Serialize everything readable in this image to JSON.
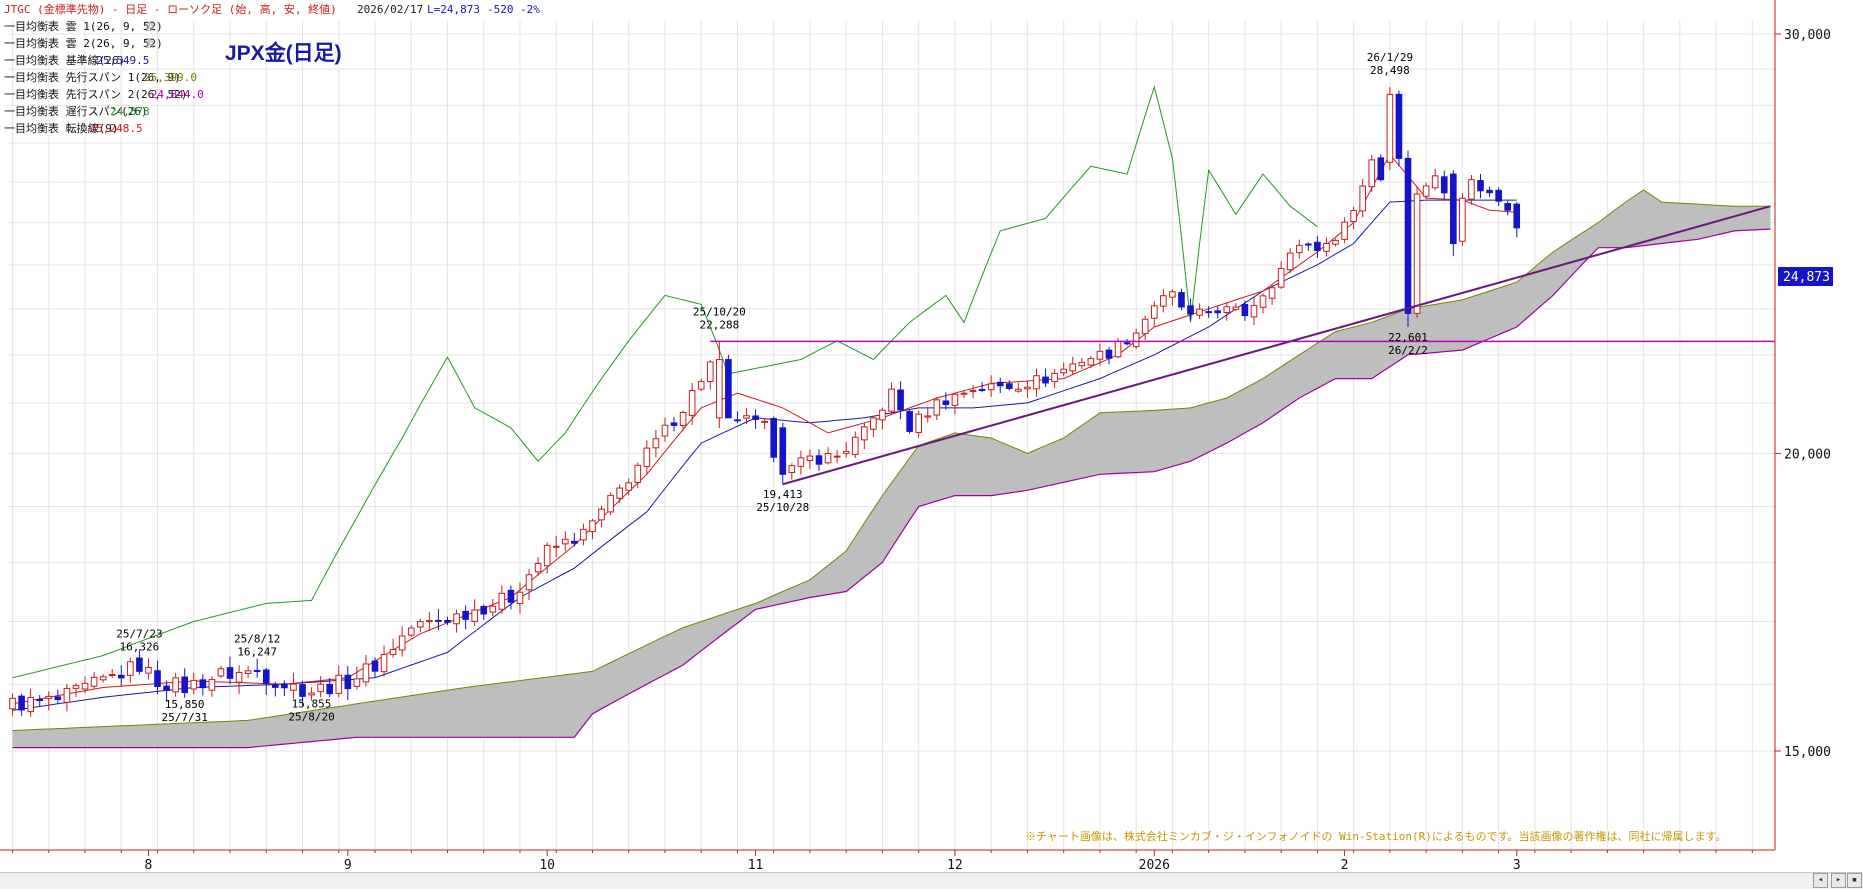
{
  "header": {
    "line": "JTGC (金標準先物) - 日足 - ローソク足 (始, 高, 安, 終値)",
    "date": "2026/02/17",
    "last": "L=24,873",
    "change": "-520",
    "pct": "-2%"
  },
  "big_title": "JPX金(日足)",
  "legend": [
    {
      "label": "一目均衡表 雲 1(26, 9, 52)",
      "value": "雲",
      "color": "#aaaaaa"
    },
    {
      "label": "一目均衡表 雲 2(26, 9, 52)",
      "value": "雲",
      "color": "#aaaaaa"
    },
    {
      "label": "一目均衡表 基準線(26)",
      "value": "25,549.5",
      "color": "#1a1aa0"
    },
    {
      "label": "一目均衡表 先行スパン 1(26, 9)",
      "value": "25,399.0",
      "color": "#808000"
    },
    {
      "label": "一目均衡表 先行スパン 2(26, 52)",
      "value": "24,844.0",
      "color": "#a000a0"
    },
    {
      "label": "一目均衡表 遅行スパン(26)",
      "value": "24,873",
      "color": "#1f9a1f"
    },
    {
      "label": "一目均衡表 転換線(9)",
      "value": "25,248.5",
      "color": "#c81e1e"
    }
  ],
  "price_label": "24,873",
  "copyright": "※チャート画像は、株式会社ミンカブ・ジ・インフォノイドの Win-Station(R)によるものです。当該画像の著作権は、同社に帰属します。",
  "colors": {
    "up": "#c81e1e",
    "down": "#1414c8",
    "kijun": "#1a1aa0",
    "tenkan": "#c81e1e",
    "chikou": "#1f9a1f",
    "span1": "#808000",
    "span2": "#a000a0",
    "cloud": "#bebebe",
    "trendline": "#6a1a7a",
    "hline": "#c000c0",
    "axis": "#c81e1e"
  },
  "chart_data": {
    "type": "candlestick",
    "ylim": [
      13000,
      32000
    ],
    "yticks": [
      "15,000",
      "20,000",
      "30,000"
    ],
    "ytick_values": [
      15000,
      20000,
      30000
    ],
    "x_month_labels": [
      "8",
      "9",
      "10",
      "11",
      "12",
      "2026",
      "2",
      "3"
    ],
    "x_month_index": [
      15,
      37,
      59,
      82,
      104,
      126,
      147,
      166
    ],
    "n_days": 195,
    "hline_value": 22288,
    "trendline": {
      "start": [
        85,
        19413
      ],
      "end": [
        194,
        25400
      ]
    },
    "annotations": [
      {
        "text": [
          "25/7/23",
          "16,326"
        ],
        "day": 14,
        "value": 16326,
        "pos": "above"
      },
      {
        "text": [
          "15,850",
          "25/7/31"
        ],
        "day": 19,
        "value": 15850,
        "pos": "below"
      },
      {
        "text": [
          "25/8/12",
          "16,247"
        ],
        "day": 27,
        "value": 16247,
        "pos": "above"
      },
      {
        "text": [
          "15,855",
          "25/8/20"
        ],
        "day": 33,
        "value": 15855,
        "pos": "below"
      },
      {
        "text": [
          "25/10/20",
          "22,288"
        ],
        "day": 78,
        "value": 22288,
        "pos": "above"
      },
      {
        "text": [
          "19,413",
          "25/10/28"
        ],
        "day": 85,
        "value": 19413,
        "pos": "below"
      },
      {
        "text": [
          "26/1/29",
          "28,498"
        ],
        "day": 152,
        "value": 28498,
        "pos": "above"
      },
      {
        "text": [
          "22,601",
          "26/2/2"
        ],
        "day": 154,
        "value": 22601,
        "pos": "below"
      }
    ],
    "close_anchors": [
      [
        0,
        15700
      ],
      [
        5,
        15750
      ],
      [
        10,
        16050
      ],
      [
        14,
        16300
      ],
      [
        16,
        16050
      ],
      [
        19,
        15950
      ],
      [
        23,
        16150
      ],
      [
        27,
        16200
      ],
      [
        30,
        16000
      ],
      [
        33,
        15900
      ],
      [
        37,
        16050
      ],
      [
        40,
        16300
      ],
      [
        44,
        16900
      ],
      [
        49,
        17100
      ],
      [
        55,
        17400
      ],
      [
        59,
        18200
      ],
      [
        63,
        18500
      ],
      [
        67,
        19300
      ],
      [
        70,
        20000
      ],
      [
        74,
        20900
      ],
      [
        77,
        21800
      ],
      [
        78,
        21400
      ],
      [
        80,
        20700
      ],
      [
        83,
        20500
      ],
      [
        85,
        19600
      ],
      [
        88,
        19900
      ],
      [
        91,
        19950
      ],
      [
        94,
        20400
      ],
      [
        97,
        21200
      ],
      [
        99,
        20500
      ],
      [
        102,
        21000
      ],
      [
        106,
        21300
      ],
      [
        110,
        21350
      ],
      [
        114,
        21500
      ],
      [
        118,
        21900
      ],
      [
        121,
        22050
      ],
      [
        124,
        22500
      ],
      [
        126,
        23100
      ],
      [
        128,
        23300
      ],
      [
        130,
        22800
      ],
      [
        133,
        23000
      ],
      [
        136,
        22900
      ],
      [
        139,
        23600
      ],
      [
        142,
        24500
      ],
      [
        145,
        24400
      ],
      [
        148,
        25300
      ],
      [
        150,
        26600
      ],
      [
        151,
        26100
      ],
      [
        152,
        28300
      ],
      [
        153,
        27400
      ],
      [
        154,
        22900
      ],
      [
        155,
        25800
      ],
      [
        157,
        26100
      ],
      [
        159,
        25400
      ],
      [
        161,
        26000
      ],
      [
        163,
        25700
      ],
      [
        165,
        25400
      ],
      [
        166,
        24873
      ]
    ],
    "chikou_anchors": [
      [
        0,
        16100
      ],
      [
        10,
        16450
      ],
      [
        20,
        17000
      ],
      [
        28,
        17300
      ],
      [
        33,
        17350
      ],
      [
        38,
        18800
      ],
      [
        43,
        20300
      ],
      [
        48,
        21950
      ],
      [
        51,
        20900
      ],
      [
        55,
        20500
      ],
      [
        58,
        19850
      ],
      [
        61,
        20400
      ],
      [
        65,
        21500
      ],
      [
        68,
        22300
      ],
      [
        72,
        23300
      ],
      [
        76,
        23100
      ],
      [
        79,
        21600
      ],
      [
        83,
        21750
      ],
      [
        87,
        21900
      ],
      [
        91,
        22300
      ],
      [
        95,
        21900
      ],
      [
        99,
        22700
      ],
      [
        103,
        23300
      ],
      [
        105,
        22700
      ],
      [
        109,
        24800
      ],
      [
        114,
        25100
      ],
      [
        119,
        26400
      ],
      [
        123,
        26200
      ],
      [
        126,
        28500
      ],
      [
        128,
        26600
      ],
      [
        130,
        22700
      ],
      [
        132,
        26300
      ],
      [
        135,
        25200
      ],
      [
        138,
        26200
      ],
      [
        141,
        25400
      ],
      [
        144,
        24900
      ]
    ],
    "tenkan_anchors": [
      [
        0,
        15700
      ],
      [
        10,
        15950
      ],
      [
        20,
        16050
      ],
      [
        30,
        16000
      ],
      [
        37,
        16100
      ],
      [
        45,
        16800
      ],
      [
        55,
        17400
      ],
      [
        62,
        18300
      ],
      [
        70,
        19600
      ],
      [
        76,
        20900
      ],
      [
        80,
        21200
      ],
      [
        85,
        20900
      ],
      [
        90,
        20400
      ],
      [
        96,
        20700
      ],
      [
        102,
        21100
      ],
      [
        108,
        21400
      ],
      [
        116,
        21500
      ],
      [
        122,
        22000
      ],
      [
        126,
        22600
      ],
      [
        132,
        23000
      ],
      [
        138,
        23400
      ],
      [
        144,
        24300
      ],
      [
        148,
        25000
      ],
      [
        152,
        26700
      ],
      [
        156,
        25600
      ],
      [
        160,
        25550
      ],
      [
        163,
        25300
      ],
      [
        166,
        25250
      ]
    ],
    "kijun_anchors": [
      [
        0,
        15600
      ],
      [
        10,
        15800
      ],
      [
        20,
        15950
      ],
      [
        30,
        16000
      ],
      [
        40,
        16100
      ],
      [
        48,
        16500
      ],
      [
        56,
        17400
      ],
      [
        62,
        17900
      ],
      [
        70,
        18900
      ],
      [
        76,
        20200
      ],
      [
        82,
        20700
      ],
      [
        88,
        20600
      ],
      [
        94,
        20700
      ],
      [
        100,
        20900
      ],
      [
        106,
        20900
      ],
      [
        112,
        21000
      ],
      [
        120,
        21500
      ],
      [
        126,
        22000
      ],
      [
        132,
        22600
      ],
      [
        138,
        23400
      ],
      [
        144,
        24000
      ],
      [
        148,
        24500
      ],
      [
        152,
        25500
      ],
      [
        156,
        25550
      ],
      [
        166,
        25550
      ]
    ],
    "span1_anchors": [
      [
        0,
        15300
      ],
      [
        26,
        15450
      ],
      [
        50,
        15950
      ],
      [
        64,
        16200
      ],
      [
        74,
        16900
      ],
      [
        82,
        17300
      ],
      [
        88,
        17700
      ],
      [
        92,
        18200
      ],
      [
        96,
        19200
      ],
      [
        100,
        20150
      ],
      [
        104,
        20400
      ],
      [
        108,
        20300
      ],
      [
        112,
        20000
      ],
      [
        116,
        20300
      ],
      [
        120,
        20800
      ],
      [
        126,
        20850
      ],
      [
        130,
        20900
      ],
      [
        134,
        21100
      ],
      [
        138,
        21500
      ],
      [
        142,
        22000
      ],
      [
        146,
        22500
      ],
      [
        150,
        22700
      ],
      [
        154,
        23000
      ],
      [
        160,
        23200
      ],
      [
        166,
        23600
      ],
      [
        170,
        24300
      ],
      [
        175,
        25000
      ],
      [
        178,
        25500
      ],
      [
        180,
        25800
      ],
      [
        182,
        25500
      ],
      [
        186,
        25450
      ],
      [
        190,
        25400
      ],
      [
        194,
        25400
      ]
    ],
    "span2_anchors": [
      [
        0,
        15050
      ],
      [
        26,
        15050
      ],
      [
        38,
        15200
      ],
      [
        62,
        15200
      ],
      [
        64,
        15550
      ],
      [
        74,
        16300
      ],
      [
        82,
        17200
      ],
      [
        88,
        17400
      ],
      [
        92,
        17500
      ],
      [
        96,
        18000
      ],
      [
        100,
        19000
      ],
      [
        104,
        19200
      ],
      [
        108,
        19200
      ],
      [
        112,
        19300
      ],
      [
        116,
        19450
      ],
      [
        120,
        19600
      ],
      [
        126,
        19650
      ],
      [
        130,
        19850
      ],
      [
        134,
        20200
      ],
      [
        138,
        20600
      ],
      [
        142,
        21100
      ],
      [
        146,
        21500
      ],
      [
        150,
        21500
      ],
      [
        154,
        22000
      ],
      [
        160,
        22100
      ],
      [
        166,
        22600
      ],
      [
        170,
        23300
      ],
      [
        175,
        24400
      ],
      [
        178,
        24400
      ],
      [
        182,
        24500
      ],
      [
        186,
        24600
      ],
      [
        190,
        24800
      ],
      [
        194,
        24844
      ]
    ]
  }
}
